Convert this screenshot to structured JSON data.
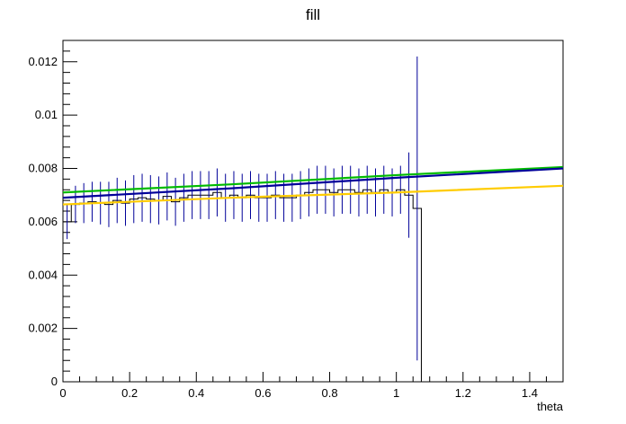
{
  "chart_data": {
    "type": "line",
    "title": "fill",
    "xlabel": "theta",
    "ylabel": "",
    "xlim": [
      0,
      1.5
    ],
    "ylim": [
      0,
      0.0128
    ],
    "grid": false,
    "legend": "none",
    "x_ticks": [
      0,
      0.2,
      0.4,
      0.6,
      0.8,
      1,
      1.2,
      1.4
    ],
    "x_tick_labels": [
      "0",
      "0.2",
      "0.4",
      "0.6",
      "0.8",
      "1",
      "1.2",
      "1.4"
    ],
    "y_ticks": [
      0,
      0.002,
      0.004,
      0.006,
      0.008,
      0.01,
      0.012
    ],
    "y_tick_labels": [
      "0",
      "0.002",
      "0.004",
      "0.006",
      "0.008",
      "0.01",
      "0.012"
    ],
    "histogram": {
      "color": "#000000",
      "error_color": "#000099",
      "bin_width": 0.025,
      "bin_start": 0,
      "values": [
        0.006,
        0.00665,
        0.0067,
        0.00675,
        0.0067,
        0.00665,
        0.0068,
        0.0067,
        0.00685,
        0.0069,
        0.00685,
        0.0068,
        0.00695,
        0.00675,
        0.0069,
        0.007,
        0.007,
        0.007,
        0.0071,
        0.0069,
        0.007,
        0.0069,
        0.007,
        0.0069,
        0.0069,
        0.007,
        0.0069,
        0.0069,
        0.007,
        0.0071,
        0.0072,
        0.0072,
        0.0071,
        0.0072,
        0.0072,
        0.0071,
        0.0072,
        0.0071,
        0.0072,
        0.0071,
        0.0072,
        0.007,
        0.0065,
        0.0
      ],
      "errors": [
        0.00065,
        0.0007,
        0.00075,
        0.00075,
        0.0008,
        0.00085,
        0.00085,
        0.00085,
        0.0009,
        0.0009,
        0.0009,
        0.0009,
        0.0009,
        0.0009,
        0.0009,
        0.0009,
        0.0009,
        0.0009,
        0.0009,
        0.0009,
        0.0009,
        0.0009,
        0.0009,
        0.0009,
        0.0009,
        0.0009,
        0.0009,
        0.0009,
        0.0009,
        0.0009,
        0.0009,
        0.0009,
        0.0009,
        0.0009,
        0.0009,
        0.0009,
        0.0009,
        0.0009,
        0.0009,
        0.0009,
        0.0009,
        0.0016,
        0.0057,
        0.0
      ]
    },
    "series": [
      {
        "color": "#00bb00",
        "x": [
          0,
          0.5,
          1.0,
          1.5
        ],
        "values": [
          0.0071,
          0.0074,
          0.00775,
          0.00805
        ]
      },
      {
        "color": "#000099",
        "x": [
          0,
          0.5,
          1.0,
          1.5
        ],
        "values": [
          0.0069,
          0.00725,
          0.00765,
          0.008
        ]
      },
      {
        "color": "#ffcc00",
        "x": [
          0,
          0.5,
          1.0,
          1.5
        ],
        "values": [
          0.00665,
          0.0069,
          0.0071,
          0.00735
        ]
      }
    ]
  }
}
